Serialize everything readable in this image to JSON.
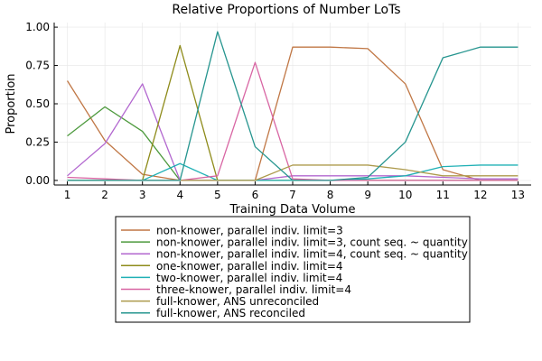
{
  "chart_data": {
    "type": "line",
    "title": "Relative Proportions of Number LoTs",
    "xlabel": "Training Data Volume",
    "ylabel": "Proportion",
    "x": [
      1,
      2,
      3,
      4,
      5,
      6,
      7,
      8,
      9,
      10,
      11,
      12,
      13
    ],
    "xlim": [
      0.65,
      13.35
    ],
    "ylim": [
      -0.03,
      1.03
    ],
    "yticks": [
      0.0,
      0.25,
      0.5,
      0.75,
      1.0
    ],
    "ytick_labels": [
      "0.00",
      "0.25",
      "0.50",
      "0.75",
      "1.00"
    ],
    "xtick_labels": [
      "1",
      "2",
      "3",
      "4",
      "5",
      "6",
      "7",
      "8",
      "9",
      "10",
      "11",
      "12",
      "13"
    ],
    "grid": true,
    "legend_position": "bottom",
    "series": [
      {
        "name": "non-knower, parallel indiv. limit=3",
        "color": "#c07745",
        "values": [
          0.65,
          0.26,
          0.04,
          0.0,
          0.0,
          0.0,
          0.87,
          0.87,
          0.86,
          0.63,
          0.07,
          0.0,
          0.0
        ]
      },
      {
        "name": "non-knower, parallel indiv. limit=3, count seq. ~ quantity",
        "color": "#4e9a3e",
        "values": [
          0.29,
          0.48,
          0.32,
          0.0,
          0.0,
          0.0,
          0.0,
          0.0,
          0.0,
          0.0,
          0.0,
          0.0,
          0.0
        ]
      },
      {
        "name": "non-knower, parallel indiv. limit=4, count seq. ~ quantity",
        "color": "#b267cf",
        "values": [
          0.03,
          0.24,
          0.63,
          0.0,
          0.0,
          0.0,
          0.03,
          0.03,
          0.03,
          0.03,
          0.02,
          0.01,
          0.01
        ]
      },
      {
        "name": "one-knower, parallel indiv. limit=4",
        "color": "#8e8b1a",
        "values": [
          0.0,
          0.0,
          0.0,
          0.88,
          0.0,
          0.0,
          0.0,
          0.0,
          0.0,
          0.0,
          0.0,
          0.0,
          0.0
        ]
      },
      {
        "name": "two-knower, parallel indiv. limit=4",
        "color": "#1fb0b5",
        "values": [
          0.0,
          0.0,
          0.0,
          0.11,
          0.0,
          0.0,
          0.0,
          0.0,
          0.01,
          0.03,
          0.09,
          0.1,
          0.1
        ]
      },
      {
        "name": "three-knower, parallel indiv. limit=4",
        "color": "#d865a3",
        "values": [
          0.02,
          0.01,
          0.0,
          0.0,
          0.03,
          0.77,
          0.01,
          0.0,
          0.0,
          0.0,
          0.0,
          0.0,
          0.0
        ]
      },
      {
        "name": "full-knower, ANS unreconciled",
        "color": "#ad9a4c",
        "values": [
          0.0,
          0.0,
          0.0,
          0.0,
          0.0,
          0.0,
          0.1,
          0.1,
          0.1,
          0.07,
          0.03,
          0.03,
          0.03
        ]
      },
      {
        "name": "full-knower, ANS reconciled",
        "color": "#26958f",
        "values": [
          0.0,
          0.0,
          0.0,
          0.0,
          0.97,
          0.22,
          0.0,
          0.0,
          0.02,
          0.25,
          0.8,
          0.87,
          0.87
        ]
      }
    ]
  }
}
